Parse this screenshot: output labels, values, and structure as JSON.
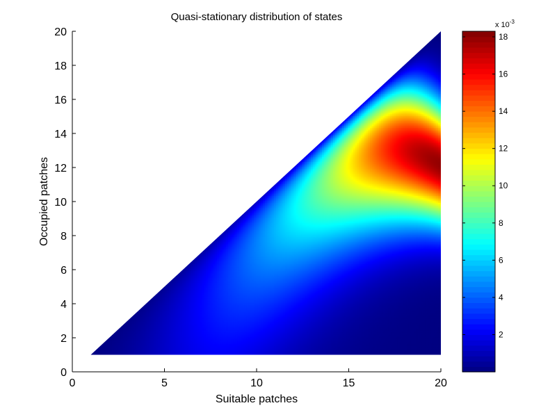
{
  "chart_data": {
    "type": "heatmap",
    "title": "Quasi-stationary distribution of states",
    "xlabel": "Suitable patches",
    "ylabel": "Occupied patches",
    "xlim": [
      0,
      20
    ],
    "ylim": [
      0,
      20
    ],
    "x_ticks": [
      "0",
      "5",
      "10",
      "15",
      "20"
    ],
    "y_ticks": [
      "0",
      "2",
      "4",
      "6",
      "8",
      "10",
      "12",
      "14",
      "16",
      "18",
      "20"
    ],
    "grid": false,
    "domain": "1 <= occupied <= suitable <= 20",
    "peak": {
      "x": 19.5,
      "y": 12.5,
      "value": 0.018
    },
    "z_range": [
      0,
      0.0183
    ],
    "colormap": "jet",
    "colorbar": {
      "ticks": [
        "2",
        "4",
        "6",
        "8",
        "10",
        "12",
        "14",
        "16",
        "18"
      ],
      "exponent_label": "x 10",
      "exponent": "-3"
    }
  }
}
